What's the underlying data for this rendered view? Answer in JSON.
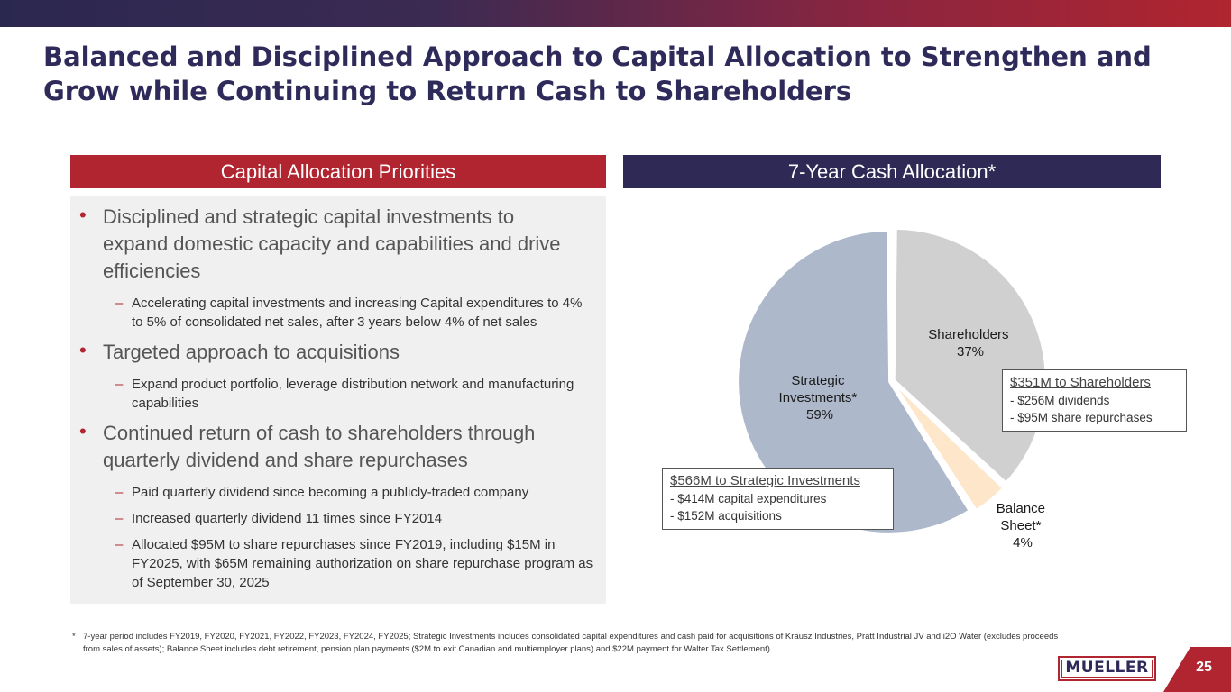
{
  "title": "Balanced and Disciplined Approach to Capital Allocation to Strengthen and Grow while Continuing to Return Cash to Shareholders",
  "left_panel": {
    "header": "Capital Allocation Priorities",
    "bullets": [
      {
        "text": "Disciplined and strategic capital investments to expand domestic capacity and capabilities and drive efficiencies",
        "subs": [
          "Accelerating capital investments and increasing Capital expenditures to 4% to 5% of consolidated net sales, after 3 years below 4% of net sales"
        ]
      },
      {
        "text": "Targeted approach to acquisitions",
        "subs": [
          "Expand product portfolio, leverage distribution network and manufacturing capabilities"
        ]
      },
      {
        "text": "Continued return of cash to shareholders through quarterly dividend and share repurchases",
        "subs": [
          "Paid quarterly dividend since becoming a publicly-traded company",
          "Increased quarterly dividend 11 times since FY2014",
          "Allocated $95M to share repurchases since FY2019, including $15M in FY2025, with $65M remaining authorization on share repurchase program as of September 30, 2025"
        ]
      }
    ],
    "bullet_symbol": "•",
    "sub_symbol": "–"
  },
  "right_panel": {
    "header": "7-Year Cash Allocation*"
  },
  "chart_data": {
    "type": "pie",
    "title": "7-Year Cash Allocation*",
    "slices": [
      {
        "name": "Shareholders",
        "value": 37,
        "label": "37%",
        "color": "#d1d0d0"
      },
      {
        "name": "Balance Sheet*",
        "value": 4,
        "label": "4%",
        "color": "#fde6c9"
      },
      {
        "name": "Strategic Investments*",
        "value": 59,
        "label": "59%",
        "color": "#adb8cb"
      }
    ],
    "labels": {
      "shareholders": [
        "Shareholders",
        "37%"
      ],
      "balance_sheet": [
        "Balance",
        "Sheet*",
        "4%"
      ],
      "strategic": [
        "Strategic",
        "Investments*",
        "59%"
      ]
    },
    "callouts": {
      "shareholders": {
        "heading": "$351M to Shareholders",
        "lines": [
          "- $256M dividends",
          "- $95M share repurchases"
        ]
      },
      "strategic": {
        "heading": "$566M to Strategic Investments",
        "lines": [
          "- $414M capital expenditures",
          "- $152M acquisitions"
        ]
      }
    }
  },
  "footnote": {
    "marker": "*",
    "text": "7-year period includes FY2019, FY2020, FY2021, FY2022, FY2023, FY2024, FY2025;  Strategic Investments includes consolidated capital expenditures and cash paid for acquisitions of Krausz Industries, Pratt Industrial JV and i2O Water (excludes proceeds from sales of assets); Balance Sheet includes debt retirement, pension plan payments ($2M to exit Canadian and multiemployer plans) and $22M payment for Walter Tax Settlement)."
  },
  "logo_text": "MUELLER",
  "page_number": "25",
  "colors": {
    "accent_red": "#b0252f",
    "navy": "#2e2a55"
  }
}
